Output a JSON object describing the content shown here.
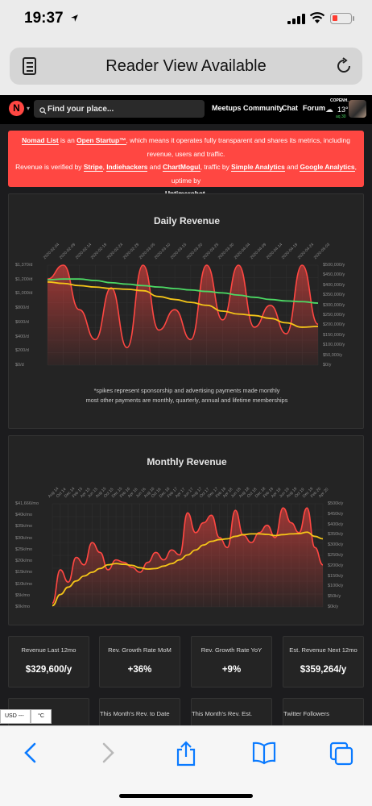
{
  "status_bar": {
    "time": "19:37"
  },
  "browser": {
    "url_title": "Reader View Available"
  },
  "header": {
    "search_placeholder": "Find your place...",
    "nav": [
      "Meetups",
      "Community",
      "Chat",
      "Forum"
    ],
    "weather": {
      "city": "COPENH.",
      "temp": "13°",
      "aqi": "30"
    }
  },
  "notice": {
    "brand": "Nomad List",
    "t1": " is an ",
    "open_startup": "Open Startup™",
    "t2": ", which means it operates fully transparent and shares its metrics, including revenue, users and traffic.",
    "t3": "Revenue is verified by ",
    "stripe": "Stripe",
    "c1": ", ",
    "indiehackers": "Indiehackers",
    "and1": " and ",
    "chartmogul": "ChartMogul",
    "t4": ", traffic by ",
    "simple": "Simple Analytics",
    "and2": " and ",
    "ga": "Google Analytics",
    "t5": ", uptime by ",
    "uptimerobot": "Uptimerobot",
    "dot": "."
  },
  "daily_chart": {
    "title": "Daily Revenue",
    "note1": "*spikes represent sponsorship and advertising payments made monthly",
    "note2": "most other payments are monthly, quarterly, annual and lifetime memberships",
    "y_left": [
      "$1,370/d",
      "$1,200/d",
      "$1,000/d",
      "$800/d",
      "$600/d",
      "$400/d",
      "$200/d",
      "$0/d"
    ],
    "y_right": [
      "$500,000/y",
      "$450,000/y",
      "$400,000/y",
      "$350,000/y",
      "$300,000/y",
      "$250,000/y",
      "$200,000/y",
      "$150,000/y",
      "$100,000/y",
      "$50,000/y",
      "$0/y"
    ],
    "x": [
      "2020-02-04",
      "2020-02-09",
      "2020-02-14",
      "2020-02-19",
      "2020-02-24",
      "2020-02-29",
      "2020-03-05",
      "2020-03-10",
      "2020-03-15",
      "2020-03-20",
      "2020-03-25",
      "2020-03-30",
      "2020-04-04",
      "2020-04-09",
      "2020-04-14",
      "2020-04-19",
      "2020-04-24",
      "2020-05-03"
    ]
  },
  "monthly_chart": {
    "title": "Monthly Revenue",
    "y_left": [
      "$41,666/mo",
      "$40k/mo",
      "$35k/mo",
      "$30k/mo",
      "$25k/mo",
      "$20k/mo",
      "$15k/mo",
      "$10k/mo",
      "$5k/mo",
      "$0k/mo"
    ],
    "y_right": [
      "$500k/y",
      "$450k/y",
      "$400k/y",
      "$350k/y",
      "$300k/y",
      "$250k/y",
      "$200k/y",
      "$150k/y",
      "$100k/y",
      "$50k/y",
      "$0k/y"
    ],
    "x": [
      "Aug 14",
      "Oct 14",
      "Dec 14",
      "Feb 15",
      "Apr 15",
      "Jun 15",
      "Aug 15",
      "Oct 15",
      "Dec 15",
      "Feb 16",
      "Apr 16",
      "Jun 16",
      "Aug 16",
      "Oct 16",
      "Dec 16",
      "Feb 17",
      "Apr 17",
      "Jun 17",
      "Aug 17",
      "Oct 17",
      "Dec 17",
      "Feb 18",
      "Apr 18",
      "Jun 18",
      "Aug 18",
      "Oct 18",
      "Dec 18",
      "Feb 19",
      "Apr 19",
      "Jun 19",
      "Aug 19",
      "Oct 19",
      "Dec 19",
      "Feb 20",
      "Apr 20"
    ]
  },
  "chart_data": [
    {
      "type": "line",
      "title": "Daily Revenue",
      "ylim": [
        0,
        1370
      ],
      "y2lim": [
        0,
        500000
      ],
      "x": [
        "2020-02-04",
        "2020-02-09",
        "2020-02-14",
        "2020-02-19",
        "2020-02-24",
        "2020-02-29",
        "2020-03-05",
        "2020-03-10",
        "2020-03-15",
        "2020-03-20",
        "2020-03-25",
        "2020-03-30",
        "2020-04-04",
        "2020-04-09",
        "2020-04-14",
        "2020-04-19",
        "2020-04-24",
        "2020-05-03"
      ],
      "series": [
        {
          "color": "#ff4742",
          "values": [
            1180,
            1370,
            760,
            350,
            1060,
            240,
            1370,
            480,
            760,
            350,
            1370,
            620,
            1370,
            520,
            820,
            430,
            1370,
            560
          ]
        },
        {
          "color": "#f5c518",
          "values": [
            1140,
            1120,
            1090,
            1070,
            1050,
            1040,
            1020,
            940,
            900,
            860,
            820,
            740,
            700,
            680,
            640,
            580,
            520,
            530
          ]
        },
        {
          "color": "#4cd964",
          "values": [
            1170,
            1180,
            1180,
            1160,
            1130,
            1110,
            1090,
            1070,
            1050,
            1030,
            1010,
            990,
            960,
            930,
            900,
            880,
            870,
            850
          ]
        }
      ]
    },
    {
      "type": "area",
      "title": "Monthly Revenue",
      "ylim": [
        0,
        41666
      ],
      "y2lim": [
        0,
        500000
      ],
      "x": [
        "Aug 14",
        "Oct 14",
        "Dec 14",
        "Feb 15",
        "Apr 15",
        "Jun 15",
        "Aug 15",
        "Oct 15",
        "Dec 15",
        "Feb 16",
        "Apr 16",
        "Jun 16",
        "Aug 16",
        "Oct 16",
        "Dec 16",
        "Feb 17",
        "Apr 17",
        "Jun 17",
        "Aug 17",
        "Oct 17",
        "Dec 17",
        "Feb 18",
        "Apr 18",
        "Jun 18",
        "Aug 18",
        "Oct 18",
        "Dec 18",
        "Feb 19",
        "Apr 19",
        "Jun 19",
        "Aug 19",
        "Oct 19",
        "Dec 19",
        "Feb 20",
        "Apr 20"
      ],
      "series": [
        {
          "color": "#ff4742",
          "values": [
            1500,
            15000,
            10000,
            20000,
            17000,
            26000,
            22000,
            15000,
            19000,
            18000,
            16000,
            14000,
            18000,
            22000,
            19000,
            23000,
            21000,
            38000,
            30000,
            34000,
            37000,
            28000,
            24000,
            39000,
            29000,
            26000,
            30000,
            33000,
            28000,
            40000,
            34000,
            30000,
            40000,
            24000,
            17000
          ]
        },
        {
          "color": "#f5c518",
          "values": [
            500,
            5000,
            8000,
            10500,
            12500,
            14000,
            15500,
            17000,
            17500,
            17200,
            16800,
            15800,
            15300,
            15500,
            16500,
            17500,
            19000,
            21000,
            23000,
            25000,
            26500,
            27200,
            27500,
            28500,
            29200,
            29500,
            29500,
            29300,
            28800,
            29200,
            29500,
            29600,
            30200,
            28500,
            27500
          ]
        }
      ]
    }
  ],
  "stats": [
    {
      "label": "Revenue Last 12mo",
      "value": "$329,600/y"
    },
    {
      "label": "Rev. Growth Rate MoM",
      "value": "+36%"
    },
    {
      "label": "Rev. Growth Rate YoY",
      "value": "+9%"
    },
    {
      "label": "Est. Revenue Next 12mo",
      "value": "$359,264/y"
    }
  ],
  "stats_row2": [
    "evenue",
    "This Month's Rev. to Date",
    "This Month's Rev. Est.",
    "Twitter Followers"
  ],
  "currency": {
    "label": "USD --- $",
    "unit": "°C"
  }
}
